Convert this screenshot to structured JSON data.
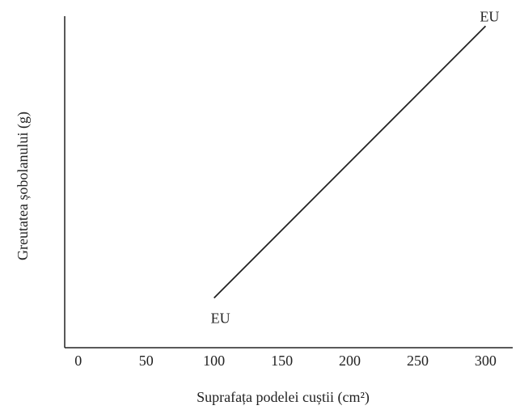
{
  "chart_data": {
    "type": "line",
    "x_label": "Suprafața podelei cuștii (cm²)",
    "y_label": "Greutatea șobolanului (g)",
    "series": [
      {
        "color": "#222222",
        "x": [
          100,
          300
        ],
        "values": [
          15,
          97
        ]
      }
    ],
    "annotations": [
      "EU",
      "EU"
    ],
    "xlim": [
      -10,
      320
    ],
    "xticks": [
      0,
      50,
      100,
      150,
      200,
      250,
      300
    ],
    "ylim": [
      0,
      100
    ],
    "grid": false
  }
}
